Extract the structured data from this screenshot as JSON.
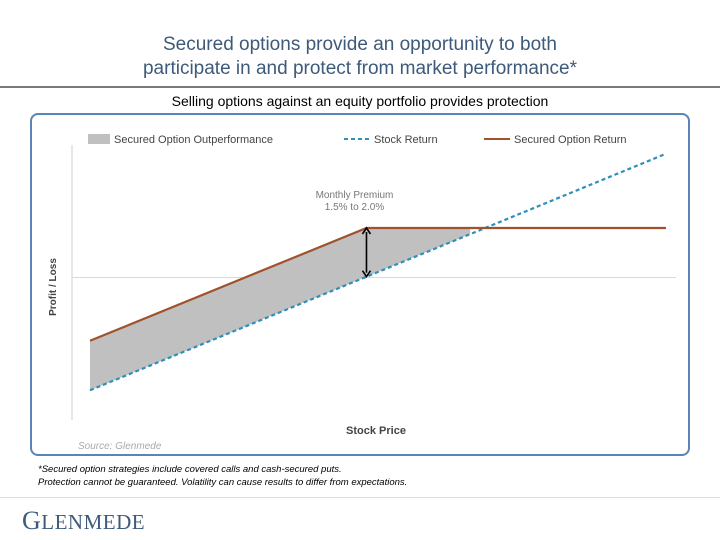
{
  "slide": {
    "title_line1": "Secured options provide an opportunity to both",
    "title_line2": "participate in and protect from market performance*",
    "subtitle": "Selling options against an equity portfolio provides protection",
    "footnote_line1": "*Secured option strategies include covered calls and cash-secured puts.",
    "footnote_line2": "Protection cannot be guaranteed. Volatility can cause results to differ from expectations.",
    "logo_first": "G",
    "logo_rest": "LENMEDE",
    "colors": {
      "title": "#3d5a7a",
      "chart_border": "#5b84b8",
      "stock_return": "#2e8fb8",
      "secured_option_return": "#a0522d",
      "outperformance_fill": "#c0c0c0"
    }
  },
  "chart_data": {
    "type": "line",
    "title": "",
    "xlabel": "Stock Price",
    "ylabel": "Profit / Loss",
    "legend_position": "top",
    "annotation_line1": "Monthly Premium",
    "annotation_line2": "1.5% to 2.0%",
    "source": "Source: Glenmede",
    "x_range": [
      0,
      10
    ],
    "y_range": [
      -5,
      5
    ],
    "series": [
      {
        "name": "Stock Return",
        "style": "dashed",
        "x": [
          0,
          10
        ],
        "y": [
          -4.1,
          4.5
        ]
      },
      {
        "name": "Secured Option Return",
        "style": "solid",
        "x": [
          0,
          4.8,
          10
        ],
        "y": [
          -2.3,
          1.8,
          1.8
        ]
      }
    ],
    "area": {
      "name": "Secured Option Outperformance",
      "x_from": 0,
      "x_to": 6.6
    }
  }
}
